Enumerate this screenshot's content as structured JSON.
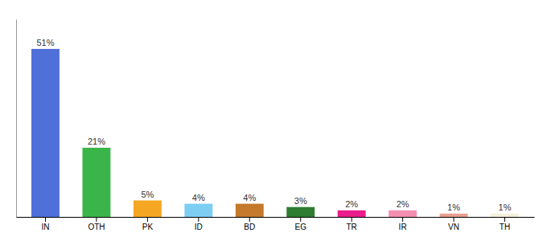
{
  "chart_data": {
    "type": "bar",
    "categories": [
      "IN",
      "OTH",
      "PK",
      "ID",
      "BD",
      "EG",
      "TR",
      "IR",
      "VN",
      "TH"
    ],
    "values": [
      51,
      21,
      5,
      4,
      4,
      3,
      2,
      2,
      1,
      1
    ],
    "value_labels": [
      "51%",
      "21%",
      "5%",
      "4%",
      "4%",
      "3%",
      "2%",
      "2%",
      "1%",
      "1%"
    ],
    "colors": [
      "#4f6fd9",
      "#3ab54a",
      "#f5a623",
      "#7ecef4",
      "#c47a2a",
      "#2e7d32",
      "#e91e8c",
      "#f48fb1",
      "#e8a090",
      "#f5f0dc"
    ],
    "ylim": [
      0,
      60
    ],
    "data_labels": true,
    "tick_labels": "x",
    "grid": false
  }
}
